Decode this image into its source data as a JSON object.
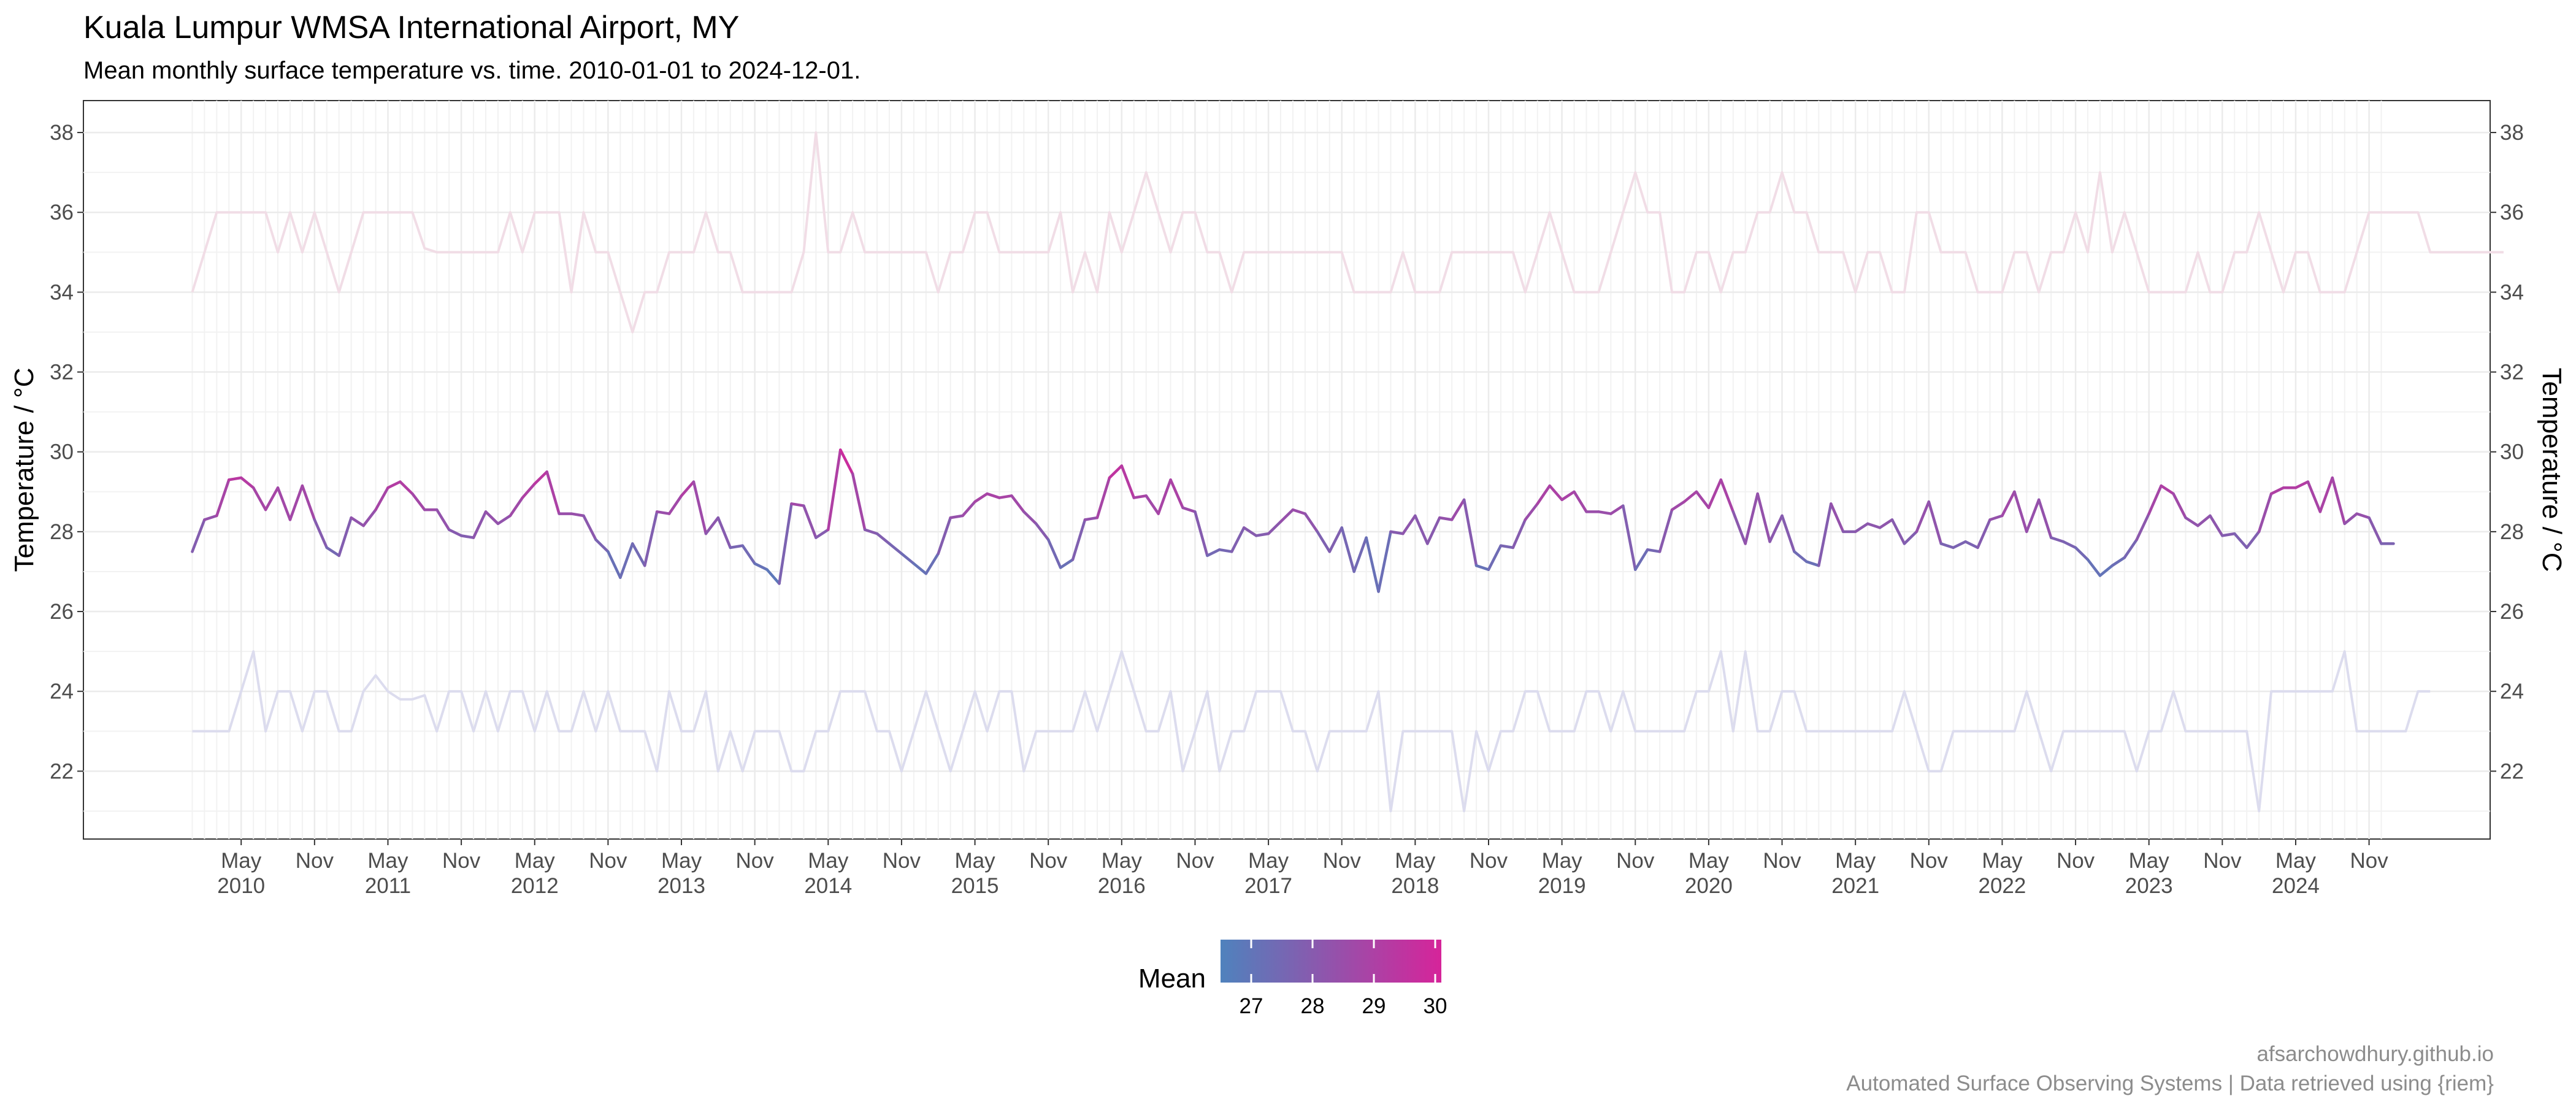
{
  "chart_data": {
    "type": "line",
    "title": "Kuala Lumpur WMSA International Airport, MY",
    "subtitle": "Mean monthly surface temperature vs. time. 2010-01-01 to 2024-12-01.",
    "ylabel": "Temperature / °C",
    "ylabel_right": "Temperature / °C",
    "ylim": [
      20.3,
      38.8
    ],
    "yticks": [
      22,
      24,
      26,
      28,
      30,
      32,
      34,
      36,
      38
    ],
    "x_start": "2010-01",
    "x_end": "2024-12",
    "xticks": [
      {
        "date": "2010-05",
        "month": "May",
        "year": "2010"
      },
      {
        "date": "2010-11",
        "month": "Nov",
        "year": ""
      },
      {
        "date": "2011-05",
        "month": "May",
        "year": "2011"
      },
      {
        "date": "2011-11",
        "month": "Nov",
        "year": ""
      },
      {
        "date": "2012-05",
        "month": "May",
        "year": "2012"
      },
      {
        "date": "2012-11",
        "month": "Nov",
        "year": ""
      },
      {
        "date": "2013-05",
        "month": "May",
        "year": "2013"
      },
      {
        "date": "2013-11",
        "month": "Nov",
        "year": ""
      },
      {
        "date": "2014-05",
        "month": "May",
        "year": "2014"
      },
      {
        "date": "2014-11",
        "month": "Nov",
        "year": ""
      },
      {
        "date": "2015-05",
        "month": "May",
        "year": "2015"
      },
      {
        "date": "2015-11",
        "month": "Nov",
        "year": ""
      },
      {
        "date": "2016-05",
        "month": "May",
        "year": "2016"
      },
      {
        "date": "2016-11",
        "month": "Nov",
        "year": ""
      },
      {
        "date": "2017-05",
        "month": "May",
        "year": "2017"
      },
      {
        "date": "2017-11",
        "month": "Nov",
        "year": ""
      },
      {
        "date": "2018-05",
        "month": "May",
        "year": "2018"
      },
      {
        "date": "2018-11",
        "month": "Nov",
        "year": ""
      },
      {
        "date": "2019-05",
        "month": "May",
        "year": "2019"
      },
      {
        "date": "2019-11",
        "month": "Nov",
        "year": ""
      },
      {
        "date": "2020-05",
        "month": "May",
        "year": "2020"
      },
      {
        "date": "2020-11",
        "month": "Nov",
        "year": ""
      },
      {
        "date": "2021-05",
        "month": "May",
        "year": "2021"
      },
      {
        "date": "2021-11",
        "month": "Nov",
        "year": ""
      },
      {
        "date": "2022-05",
        "month": "May",
        "year": "2022"
      },
      {
        "date": "2022-11",
        "month": "Nov",
        "year": ""
      },
      {
        "date": "2023-05",
        "month": "May",
        "year": "2023"
      },
      {
        "date": "2023-11",
        "month": "Nov",
        "year": ""
      },
      {
        "date": "2024-05",
        "month": "May",
        "year": "2024"
      },
      {
        "date": "2024-11",
        "month": "Nov",
        "year": ""
      }
    ],
    "grid": true,
    "legend": {
      "title": "Mean",
      "position": "bottom",
      "ticks": [
        27,
        28,
        29,
        30
      ],
      "range": [
        26.5,
        30.1
      ],
      "color_low": "#4f82bd",
      "color_high": "#d6249a"
    },
    "colors": {
      "max_line": "#f1dde6",
      "min_line": "#dcdcee"
    },
    "series": [
      {
        "key": "max",
        "values": [
          34,
          35,
          36,
          36,
          36,
          36,
          36,
          35,
          36,
          35,
          36,
          35,
          34,
          35,
          36,
          36,
          36,
          36,
          36,
          35.1,
          35,
          35,
          35,
          35,
          35,
          35,
          36,
          35,
          36,
          36,
          36,
          34,
          36,
          35,
          35,
          34,
          33,
          34,
          34,
          35,
          35,
          35,
          36,
          35,
          35,
          34,
          34,
          34,
          34,
          34,
          35,
          38,
          35,
          35,
          36,
          35,
          35,
          35,
          35,
          35,
          35,
          34,
          35,
          35,
          36,
          36,
          35,
          35,
          35,
          35,
          35,
          36,
          34,
          35,
          34,
          36,
          35,
          36,
          37,
          36,
          35,
          36,
          36,
          35,
          35,
          34,
          35,
          35,
          35,
          35,
          35,
          35,
          35,
          35,
          35,
          34,
          34,
          34,
          34,
          35,
          34,
          34,
          34,
          35,
          35,
          35,
          35,
          35,
          35,
          34,
          35,
          36,
          35,
          34,
          34,
          34,
          35,
          36,
          37,
          36,
          36,
          34,
          34,
          35,
          35,
          34,
          35,
          35,
          36,
          36,
          37,
          36,
          36,
          35,
          35,
          35,
          34,
          35,
          35,
          34,
          34,
          36,
          36,
          35,
          35,
          35,
          34,
          34,
          34,
          35,
          35,
          34,
          35,
          35,
          36,
          35,
          37,
          35,
          36,
          35,
          34,
          34,
          34,
          34,
          35,
          34,
          34,
          35,
          35,
          36,
          35,
          34,
          35,
          35,
          34,
          34,
          34,
          35,
          36,
          36,
          36,
          36,
          36,
          35,
          35,
          35,
          35,
          35,
          35,
          35
        ]
      },
      {
        "key": "mean",
        "values": [
          27.5,
          28.3,
          28.4,
          29.3,
          29.35,
          29.1,
          28.55,
          29.1,
          28.3,
          29.15,
          28.3,
          27.6,
          27.4,
          28.35,
          28.15,
          28.55,
          29.1,
          29.25,
          28.95,
          28.55,
          28.55,
          28.05,
          27.9,
          27.85,
          28.5,
          28.2,
          28.4,
          28.85,
          29.2,
          29.5,
          28.45,
          28.45,
          28.4,
          27.8,
          27.5,
          26.85,
          27.7,
          27.15,
          28.5,
          28.45,
          28.9,
          29.25,
          27.95,
          28.35,
          27.6,
          27.65,
          27.2,
          27.05,
          26.7,
          28.7,
          28.65,
          27.85,
          28.05,
          30.05,
          29.45,
          28.05,
          27.95,
          27.7,
          27.45,
          27.2,
          26.95,
          27.45,
          28.35,
          28.4,
          28.75,
          28.95,
          28.85,
          28.9,
          28.5,
          28.2,
          27.8,
          27.1,
          27.3,
          28.3,
          28.35,
          29.35,
          29.65,
          28.85,
          28.9,
          28.45,
          29.3,
          28.6,
          28.5,
          27.4,
          27.55,
          27.5,
          28.1,
          27.9,
          27.95,
          28.25,
          28.55,
          28.45,
          28.0,
          27.5,
          28.1,
          27.0,
          27.85,
          26.5,
          28.0,
          27.95,
          28.4,
          27.7,
          28.35,
          28.3,
          28.8,
          27.15,
          27.05,
          27.65,
          27.6,
          28.3,
          28.7,
          29.15,
          28.8,
          29.0,
          28.5,
          28.5,
          28.45,
          28.65,
          27.05,
          27.55,
          27.5,
          28.55,
          28.75,
          29.0,
          28.6,
          29.3,
          28.5,
          27.7,
          28.95,
          27.75,
          28.4,
          27.5,
          27.25,
          27.15,
          28.7,
          28.0,
          28.0,
          28.2,
          28.1,
          28.3,
          27.7,
          28.0,
          28.75,
          27.7,
          27.6,
          27.75,
          27.6,
          28.3,
          28.4,
          29.0,
          28.0,
          28.8,
          27.85,
          27.75,
          27.6,
          27.3,
          26.9,
          27.15,
          27.35,
          27.8,
          28.45,
          29.15,
          28.95,
          28.35,
          28.15,
          28.4,
          27.9,
          27.95,
          27.6,
          28.0,
          28.95,
          29.1,
          29.1,
          29.25,
          28.5,
          29.35,
          28.2,
          28.45,
          28.35,
          27.7,
          27.7
        ]
      },
      {
        "key": "min",
        "values": [
          23,
          23,
          23,
          23,
          24,
          25,
          23,
          24,
          24,
          23,
          24,
          24,
          23,
          23,
          24,
          24.4,
          24,
          23.8,
          23.8,
          23.9,
          23,
          24,
          24,
          23,
          24,
          23,
          24,
          24,
          23,
          24,
          23,
          23,
          24,
          23,
          24,
          23,
          23,
          23,
          22,
          24,
          23,
          23,
          24,
          22,
          23,
          22,
          23,
          23,
          23,
          22,
          22,
          23,
          23,
          24,
          24,
          24,
          23,
          23,
          22,
          23,
          24,
          23,
          22,
          23,
          24,
          23,
          24,
          24,
          22,
          23,
          23,
          23,
          23,
          24,
          23,
          24,
          25,
          24,
          23,
          23,
          24,
          22,
          23,
          24,
          22,
          23,
          23,
          24,
          24,
          24,
          23,
          23,
          22,
          23,
          23,
          23,
          23,
          24,
          21,
          23,
          23,
          23,
          23,
          23,
          21,
          23,
          22,
          23,
          23,
          24,
          24,
          23,
          23,
          23,
          24,
          24,
          23,
          24,
          23,
          23,
          23,
          23,
          23,
          24,
          24,
          25,
          23,
          25,
          23,
          23,
          24,
          24,
          23,
          23,
          23,
          23,
          23,
          23,
          23,
          23,
          24,
          23,
          22,
          22,
          23,
          23,
          23,
          23,
          23,
          23,
          24,
          23,
          22,
          23,
          23,
          23,
          23,
          23,
          23,
          22,
          23,
          23,
          24,
          23,
          23,
          23,
          23,
          23,
          23,
          21,
          24,
          24,
          24,
          24,
          24,
          24,
          25,
          23,
          23,
          23,
          23,
          23,
          24,
          24
        ]
      }
    ]
  },
  "caption": {
    "line1": "afsarchowdhury.github.io",
    "line2": "Automated Surface Observing Systems | Data retrieved using {riem}"
  }
}
